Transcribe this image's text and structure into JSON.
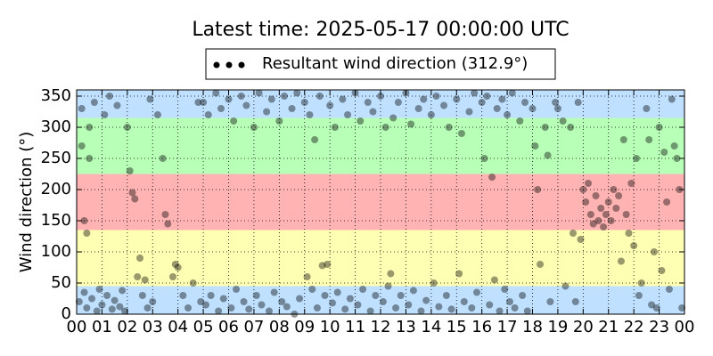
{
  "chart_data": {
    "type": "scatter",
    "title": "Latest time: 2025-05-17 00:00:00 UTC",
    "ylabel": "Wind direction (°)",
    "xlim": [
      0,
      24
    ],
    "ylim": [
      0,
      360
    ],
    "xticks": [
      {
        "value": 0,
        "label": "00"
      },
      {
        "value": 1,
        "label": "01"
      },
      {
        "value": 2,
        "label": "02"
      },
      {
        "value": 3,
        "label": "03"
      },
      {
        "value": 4,
        "label": "04"
      },
      {
        "value": 5,
        "label": "05"
      },
      {
        "value": 6,
        "label": "06"
      },
      {
        "value": 7,
        "label": "07"
      },
      {
        "value": 8,
        "label": "08"
      },
      {
        "value": 9,
        "label": "09"
      },
      {
        "value": 10,
        "label": "10"
      },
      {
        "value": 11,
        "label": "11"
      },
      {
        "value": 12,
        "label": "12"
      },
      {
        "value": 13,
        "label": "13"
      },
      {
        "value": 14,
        "label": "14"
      },
      {
        "value": 15,
        "label": "15"
      },
      {
        "value": 16,
        "label": "16"
      },
      {
        "value": 17,
        "label": "17"
      },
      {
        "value": 18,
        "label": "18"
      },
      {
        "value": 19,
        "label": "19"
      },
      {
        "value": 20,
        "label": "20"
      },
      {
        "value": 21,
        "label": "21"
      },
      {
        "value": 22,
        "label": "22"
      },
      {
        "value": 23,
        "label": "23"
      },
      {
        "value": 24,
        "label": "00"
      }
    ],
    "yticks": [
      0,
      50,
      100,
      150,
      200,
      250,
      300,
      350
    ],
    "grid": true,
    "legend": "upper center",
    "bands": [
      {
        "from": 0,
        "to": 45,
        "color": "#bfe0ff"
      },
      {
        "from": 45,
        "to": 135,
        "color": "#ffffb3"
      },
      {
        "from": 135,
        "to": 225,
        "color": "#ffb3b3"
      },
      {
        "from": 225,
        "to": 315,
        "color": "#b8ffb8"
      },
      {
        "from": 315,
        "to": 360,
        "color": "#bfe0ff"
      }
    ],
    "series": [
      {
        "name": "Resultant wind direction (312.9°)",
        "color": "#000000",
        "opacity": 0.4,
        "x": [
          0.1,
          0.2,
          0.3,
          0.4,
          0.5,
          0.6,
          0.7,
          0.8,
          0.9,
          1.0,
          1.1,
          1.2,
          1.3,
          1.4,
          1.5,
          1.6,
          1.7,
          1.8,
          1.9,
          0.3,
          0.4,
          0.2,
          0.5,
          2.0,
          2.1,
          2.2,
          2.3,
          2.4,
          2.5,
          2.6,
          2.7,
          2.8,
          2.9,
          3.0,
          3.2,
          3.4,
          3.5,
          3.6,
          3.8,
          3.9,
          4.0,
          4.2,
          4.4,
          4.6,
          4.8,
          4.9,
          5.0,
          5.1,
          5.2,
          5.3,
          5.5,
          5.6,
          5.7,
          5.8,
          6.0,
          6.1,
          6.2,
          6.3,
          6.5,
          6.6,
          6.7,
          6.8,
          7.0,
          7.1,
          7.2,
          7.3,
          7.5,
          7.6,
          7.7,
          7.8,
          8.0,
          8.1,
          8.2,
          8.3,
          8.5,
          8.6,
          8.7,
          8.8,
          9.0,
          9.1,
          9.2,
          9.3,
          9.4,
          9.5,
          9.6,
          9.7,
          9.8,
          9.9,
          10.0,
          10.1,
          10.2,
          10.3,
          10.5,
          10.6,
          10.7,
          10.8,
          11.0,
          11.1,
          11.2,
          11.3,
          11.5,
          11.6,
          11.7,
          11.8,
          12.0,
          12.1,
          12.2,
          12.3,
          12.4,
          12.5,
          12.6,
          12.7,
          12.8,
          13.0,
          13.1,
          13.2,
          13.3,
          13.5,
          13.6,
          13.7,
          13.8,
          14.0,
          14.1,
          14.2,
          14.3,
          14.5,
          14.6,
          14.7,
          14.8,
          15.0,
          15.1,
          15.2,
          15.3,
          15.5,
          15.6,
          15.7,
          15.8,
          16.0,
          16.1,
          16.2,
          16.3,
          16.4,
          16.5,
          16.6,
          16.7,
          16.8,
          16.9,
          17.0,
          17.1,
          17.2,
          17.3,
          17.5,
          17.6,
          17.7,
          17.8,
          18.0,
          18.1,
          18.2,
          18.3,
          18.5,
          18.6,
          18.7,
          18.9,
          19.0,
          19.2,
          19.3,
          19.5,
          19.6,
          19.7,
          19.8,
          19.9,
          20.0,
          20.1,
          20.2,
          20.3,
          20.4,
          20.5,
          20.6,
          20.7,
          20.8,
          20.9,
          21.0,
          21.1,
          21.2,
          21.3,
          21.4,
          21.5,
          21.6,
          21.7,
          21.8,
          21.9,
          22.0,
          22.1,
          22.2,
          22.3,
          22.5,
          22.6,
          22.7,
          22.8,
          22.9,
          23.0,
          23.1,
          23.2,
          23.3,
          23.4,
          23.5,
          23.6,
          23.7,
          23.8,
          23.9
        ],
        "values": [
          20,
          330,
          35,
          10,
          300,
          25,
          340,
          5,
          40,
          15,
          320,
          30,
          350,
          8,
          22,
          335,
          12,
          38,
          5,
          150,
          130,
          270,
          250,
          300,
          230,
          195,
          185,
          60,
          90,
          30,
          55,
          10,
          345,
          20,
          320,
          250,
          160,
          145,
          60,
          80,
          75,
          30,
          10,
          50,
          340,
          20,
          340,
          15,
          320,
          30,
          355,
          5,
          330,
          25,
          345,
          10,
          310,
          40,
          350,
          20,
          335,
          8,
          300,
          30,
          355,
          15,
          325,
          5,
          345,
          35,
          310,
          20,
          350,
          12,
          330,
          0,
          355,
          25,
          340,
          60,
          320,
          40,
          280,
          10,
          350,
          78,
          30,
          80,
          335,
          18,
          300,
          35,
          345,
          8,
          320,
          25,
          355,
          15,
          310,
          40,
          340,
          5,
          325,
          30,
          350,
          20,
          300,
          45,
          65,
          315,
          10,
          340,
          30,
          355,
          15,
          305,
          38,
          330,
          5,
          345,
          22,
          320,
          50,
          350,
          12,
          335,
          30,
          300,
          8,
          345,
          65,
          290,
          20,
          325,
          10,
          355,
          35,
          340,
          250,
          350,
          15,
          220,
          55,
          330,
          5,
          345,
          40,
          320,
          20,
          355,
          10,
          310,
          30,
          340,
          5,
          330,
          270,
          200,
          80,
          300,
          255,
          20,
          340,
          330,
          310,
          45,
          300,
          130,
          20,
          340,
          120,
          200,
          180,
          210,
          160,
          145,
          190,
          150,
          170,
          140,
          160,
          180,
          150,
          200,
          170,
          190,
          85,
          280,
          160,
          130,
          210,
          110,
          250,
          30,
          50,
          330,
          280,
          15,
          100,
          10,
          300,
          70,
          260,
          180,
          40,
          345,
          270,
          250,
          200,
          10
        ]
      }
    ]
  }
}
